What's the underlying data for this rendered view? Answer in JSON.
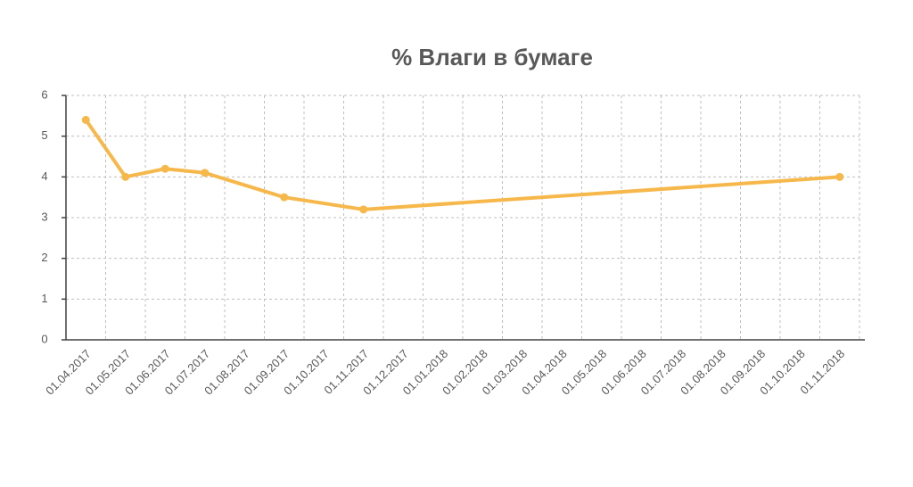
{
  "chart_data": {
    "type": "line",
    "title": "% Влаги в бумаге",
    "categories": [
      "01.04.2017",
      "01.05.2017",
      "01.06.2017",
      "01.07.2017",
      "01.08.2017",
      "01.09.2017",
      "01.10.2017",
      "01.11.2017",
      "01.12.2017",
      "01.01.2018",
      "01.02.2018",
      "01.03.2018",
      "01.04.2018",
      "01.05.2018",
      "01.06.2018",
      "01.07.2018",
      "01.08.2018",
      "01.09.2018",
      "01.10.2018",
      "01.11.2018"
    ],
    "series": [
      {
        "name": "% Влаги в бумаге",
        "color": "#f7b84b",
        "values": [
          5.4,
          4.0,
          4.2,
          4.1,
          null,
          3.5,
          null,
          3.2,
          null,
          null,
          null,
          null,
          null,
          null,
          null,
          null,
          null,
          null,
          null,
          4.0
        ]
      }
    ],
    "connect_gaps": true,
    "ylim": [
      0,
      6
    ],
    "yticks": [
      0,
      1,
      2,
      3,
      4,
      5,
      6
    ],
    "grid": true
  }
}
